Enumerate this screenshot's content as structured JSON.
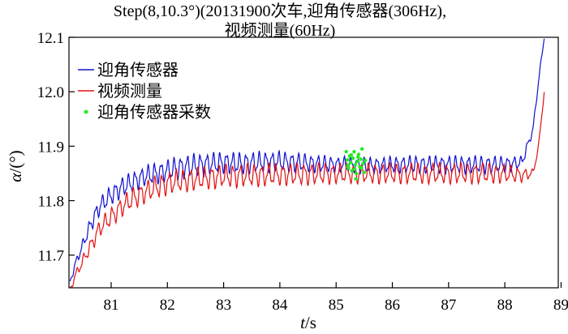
{
  "chart_data": {
    "type": "line",
    "title_lines": [
      "Step(8,10.3°)(20131900次车,迎角传感器(306Hz),",
      "视频测量(60Hz)"
    ],
    "xlabel": "t",
    "xlabel_unit": "/s",
    "ylabel": "α",
    "ylabel_unit": "/(°)",
    "xlim": [
      80.25,
      88.95
    ],
    "ylim": [
      11.64,
      12.1
    ],
    "x_ticks": [
      81,
      82,
      83,
      84,
      85,
      86,
      87,
      88,
      89
    ],
    "y_ticks": [
      11.7,
      11.8,
      11.9,
      12.0,
      12.1
    ],
    "x_tick_labels": [
      "81",
      "82",
      "83",
      "84",
      "85",
      "86",
      "87",
      "88",
      "89"
    ],
    "y_tick_labels": [
      "11.7",
      "11.8",
      "11.9",
      "12.0",
      "12.1"
    ],
    "grid": false,
    "legend_position": "top-left",
    "series": [
      {
        "name": "迎角传感器",
        "color": "#1010d0",
        "x": [
          80.27,
          80.35,
          80.5,
          80.65,
          80.8,
          81.0,
          81.2,
          81.4,
          81.6,
          81.8,
          82.0,
          82.2,
          82.5,
          82.8,
          83.0,
          83.3,
          83.6,
          84.0,
          84.3,
          84.6,
          85.0,
          85.3,
          85.6,
          86.0,
          86.3,
          86.6,
          87.0,
          87.3,
          87.6,
          88.0,
          88.3,
          88.5,
          88.6,
          88.7
        ],
        "y": [
          11.65,
          11.68,
          11.72,
          11.76,
          11.79,
          11.81,
          11.825,
          11.835,
          11.845,
          11.85,
          11.855,
          11.86,
          11.865,
          11.868,
          11.87,
          11.868,
          11.87,
          11.872,
          11.87,
          11.868,
          11.866,
          11.866,
          11.864,
          11.866,
          11.866,
          11.866,
          11.866,
          11.866,
          11.866,
          11.866,
          11.87,
          11.93,
          12.02,
          12.1
        ],
        "amp": [
          0.004,
          0.006,
          0.008,
          0.012,
          0.013,
          0.014,
          0.015,
          0.015,
          0.015,
          0.016,
          0.016,
          0.017,
          0.017,
          0.016,
          0.016,
          0.016,
          0.016,
          0.015,
          0.014,
          0.013,
          0.012,
          0.012,
          0.012,
          0.012,
          0.013,
          0.013,
          0.013,
          0.013,
          0.013,
          0.012,
          0.009,
          0.005,
          0.004,
          0.003
        ]
      },
      {
        "name": "视频测量",
        "color": "#e01010",
        "x": [
          80.27,
          80.35,
          80.5,
          80.65,
          80.8,
          81.0,
          81.2,
          81.4,
          81.6,
          81.8,
          82.0,
          82.2,
          82.5,
          82.8,
          83.0,
          83.3,
          83.6,
          84.0,
          84.3,
          84.6,
          85.0,
          85.3,
          85.6,
          86.0,
          86.3,
          86.6,
          87.0,
          87.3,
          87.6,
          88.0,
          88.3,
          88.5,
          88.6,
          88.7
        ],
        "y": [
          11.635,
          11.66,
          11.69,
          11.72,
          11.75,
          11.77,
          11.79,
          11.805,
          11.815,
          11.825,
          11.832,
          11.836,
          11.84,
          11.843,
          11.845,
          11.846,
          11.847,
          11.848,
          11.848,
          11.849,
          11.85,
          11.85,
          11.85,
          11.85,
          11.85,
          11.85,
          11.85,
          11.85,
          11.85,
          11.85,
          11.847,
          11.85,
          11.9,
          12.0
        ],
        "amp": [
          0.004,
          0.006,
          0.008,
          0.011,
          0.013,
          0.014,
          0.015,
          0.016,
          0.016,
          0.017,
          0.017,
          0.017,
          0.017,
          0.017,
          0.017,
          0.017,
          0.017,
          0.016,
          0.016,
          0.016,
          0.015,
          0.015,
          0.015,
          0.015,
          0.015,
          0.015,
          0.015,
          0.015,
          0.015,
          0.014,
          0.01,
          0.006,
          0.004,
          0.003
        ]
      },
      {
        "name": "迎角传感器采数",
        "color": "#22ee22",
        "points": [
          [
            85.18,
            11.89
          ],
          [
            85.2,
            11.875
          ],
          [
            85.22,
            11.86
          ],
          [
            85.24,
            11.882
          ],
          [
            85.26,
            11.87
          ],
          [
            85.28,
            11.855
          ],
          [
            85.3,
            11.878
          ],
          [
            85.32,
            11.89
          ],
          [
            85.34,
            11.866
          ],
          [
            85.36,
            11.85
          ],
          [
            85.38,
            11.872
          ],
          [
            85.4,
            11.885
          ],
          [
            85.42,
            11.862
          ],
          [
            85.44,
            11.876
          ],
          [
            85.46,
            11.895
          ],
          [
            85.48,
            11.868
          ],
          [
            85.5,
            11.852
          ],
          [
            85.52,
            11.874
          ],
          [
            85.21,
            11.865
          ],
          [
            85.27,
            11.884
          ],
          [
            85.33,
            11.858
          ],
          [
            85.39,
            11.88
          ],
          [
            85.45,
            11.86
          ],
          [
            85.35,
            11.84
          ]
        ]
      }
    ]
  }
}
